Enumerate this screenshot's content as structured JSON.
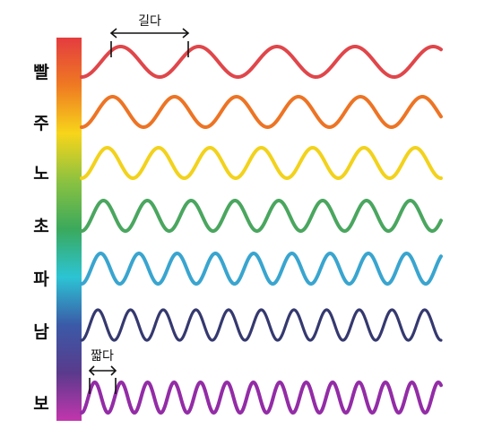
{
  "diagram": {
    "annotations": {
      "long": "길다",
      "short": "짧다"
    },
    "waves": [
      {
        "label": "빨",
        "color": "#e0464a",
        "cycles": 4.6
      },
      {
        "label": "주",
        "color": "#ed7424",
        "cycles": 5.8
      },
      {
        "label": "노",
        "color": "#f2d21b",
        "cycles": 7.0
      },
      {
        "label": "초",
        "color": "#4aa65f",
        "cycles": 8.2
      },
      {
        "label": "파",
        "color": "#39a5cf",
        "cycles": 9.4
      },
      {
        "label": "남",
        "color": "#35396f",
        "cycles": 11.0
      },
      {
        "label": "보",
        "color": "#932ca6",
        "cycles": 13.6
      }
    ],
    "spectrum_colors": [
      "#e43c3f",
      "#ef7a22",
      "#f7d51a",
      "#8bc240",
      "#3aa95c",
      "#2cc4d4",
      "#3a5aa8",
      "#5a3a8c",
      "#c236ad"
    ]
  }
}
